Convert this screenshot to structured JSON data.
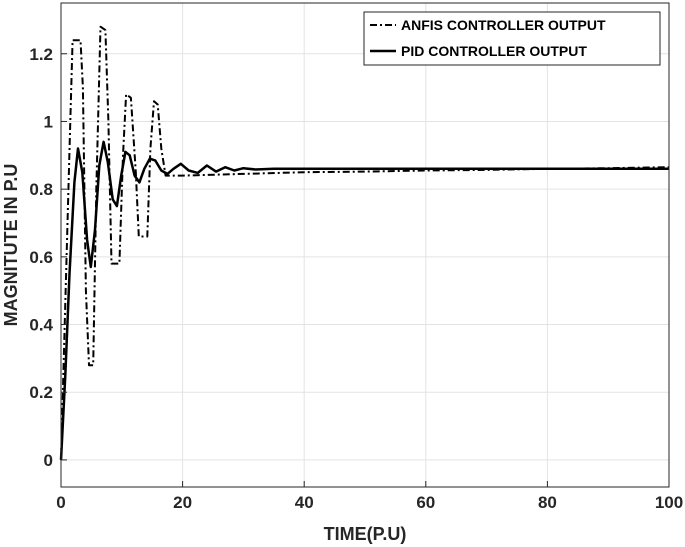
{
  "chart_data": {
    "type": "line",
    "title": "",
    "xlabel": "TIME(P.U)",
    "ylabel": "MAGNITUTE IN P.U",
    "xlim": [
      0,
      100
    ],
    "ylim": [
      -0.08,
      1.35
    ],
    "xticks": [
      0,
      20,
      40,
      60,
      80,
      100
    ],
    "yticks": [
      0,
      0.2,
      0.4,
      0.6,
      0.8,
      1,
      1.2
    ],
    "xtick_labels": [
      "0",
      "20",
      "40",
      "60",
      "80",
      "100"
    ],
    "ytick_labels": [
      "0",
      "0.2",
      "0.4",
      "0.6",
      "0.8",
      "1",
      "1.2"
    ],
    "grid": true,
    "legend_position": "top-right",
    "series": [
      {
        "name": "ANFIS CONTROLLER OUTPUT",
        "style": "dashdot",
        "color": "#000000",
        "x": [
          0,
          1.5,
          1.9,
          3.2,
          3.6,
          4.1,
          4.6,
          5.3,
          5.8,
          6.5,
          7.3,
          7.8,
          8.3,
          9.6,
          10.2,
          10.7,
          11.5,
          12.3,
          12.8,
          14.2,
          14.7,
          15.3,
          15.9,
          16.5,
          17.2,
          18,
          20,
          30,
          40,
          50,
          60,
          70,
          80,
          90,
          100
        ],
        "values": [
          0,
          0.98,
          1.24,
          1.24,
          1.1,
          0.5,
          0.28,
          0.28,
          0.8,
          1.28,
          1.27,
          1.0,
          0.58,
          0.58,
          0.9,
          1.08,
          1.07,
          0.85,
          0.66,
          0.66,
          0.92,
          1.06,
          1.05,
          0.92,
          0.84,
          0.84,
          0.84,
          0.845,
          0.85,
          0.852,
          0.855,
          0.857,
          0.86,
          0.862,
          0.865
        ]
      },
      {
        "name": "PID CONTROLLER OUTPUT",
        "style": "solid",
        "color": "#000000",
        "x": [
          0,
          0.7,
          1.4,
          2.2,
          2.8,
          3.5,
          4.3,
          4.9,
          5.6,
          6.3,
          7.0,
          7.7,
          8.5,
          9.2,
          9.9,
          10.6,
          11.3,
          12.1,
          12.9,
          13.7,
          14.6,
          15.5,
          16.5,
          17.5,
          18.5,
          19.7,
          21,
          22.5,
          24,
          25.5,
          27,
          28.5,
          30,
          32,
          35,
          40,
          50,
          60,
          70,
          80,
          90,
          100
        ],
        "values": [
          0,
          0.25,
          0.55,
          0.82,
          0.92,
          0.85,
          0.65,
          0.57,
          0.68,
          0.87,
          0.94,
          0.88,
          0.77,
          0.75,
          0.84,
          0.91,
          0.9,
          0.84,
          0.82,
          0.86,
          0.89,
          0.885,
          0.855,
          0.845,
          0.86,
          0.875,
          0.855,
          0.848,
          0.87,
          0.852,
          0.865,
          0.855,
          0.862,
          0.858,
          0.86,
          0.86,
          0.86,
          0.86,
          0.86,
          0.86,
          0.86,
          0.86
        ]
      }
    ]
  }
}
